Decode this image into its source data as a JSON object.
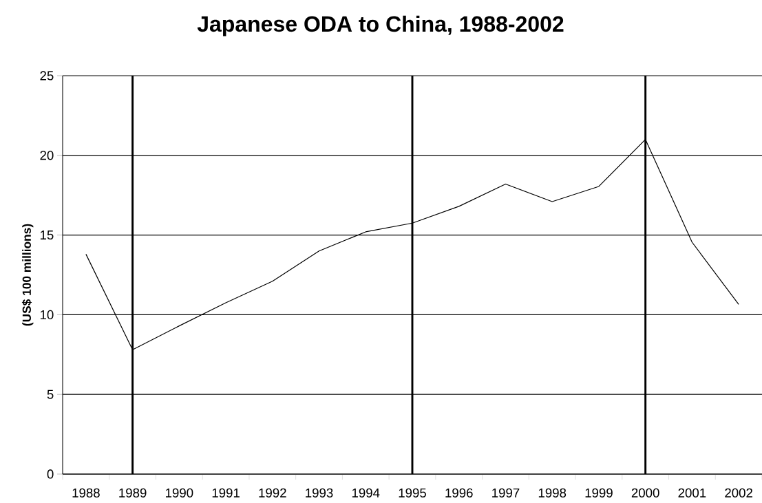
{
  "chart_data": {
    "type": "line",
    "title": "Japanese ODA to China, 1988-2002",
    "ylabel": "(US$ 100 millions)",
    "categories": [
      "1988",
      "1989",
      "1990",
      "1991",
      "1992",
      "1993",
      "1994",
      "1995",
      "1996",
      "1997",
      "1998",
      "1999",
      "2000",
      "2001",
      "2002"
    ],
    "series": [
      {
        "color": "#000000",
        "values": [
          13.8,
          7.8,
          9.3,
          10.75,
          12.1,
          14.0,
          15.2,
          15.75,
          16.8,
          18.2,
          17.1,
          18.05,
          21.0,
          14.55,
          10.65
        ]
      }
    ],
    "ylim": [
      0,
      25
    ],
    "yticks": [
      0,
      5,
      10,
      15,
      20,
      25
    ],
    "grid": "y",
    "ref_lines": [
      {
        "axis": "x",
        "value": "1989",
        "color": "#000000"
      },
      {
        "axis": "x",
        "value": "1995",
        "color": "#000000"
      },
      {
        "axis": "x",
        "value": "2000",
        "color": "#000000"
      }
    ]
  }
}
